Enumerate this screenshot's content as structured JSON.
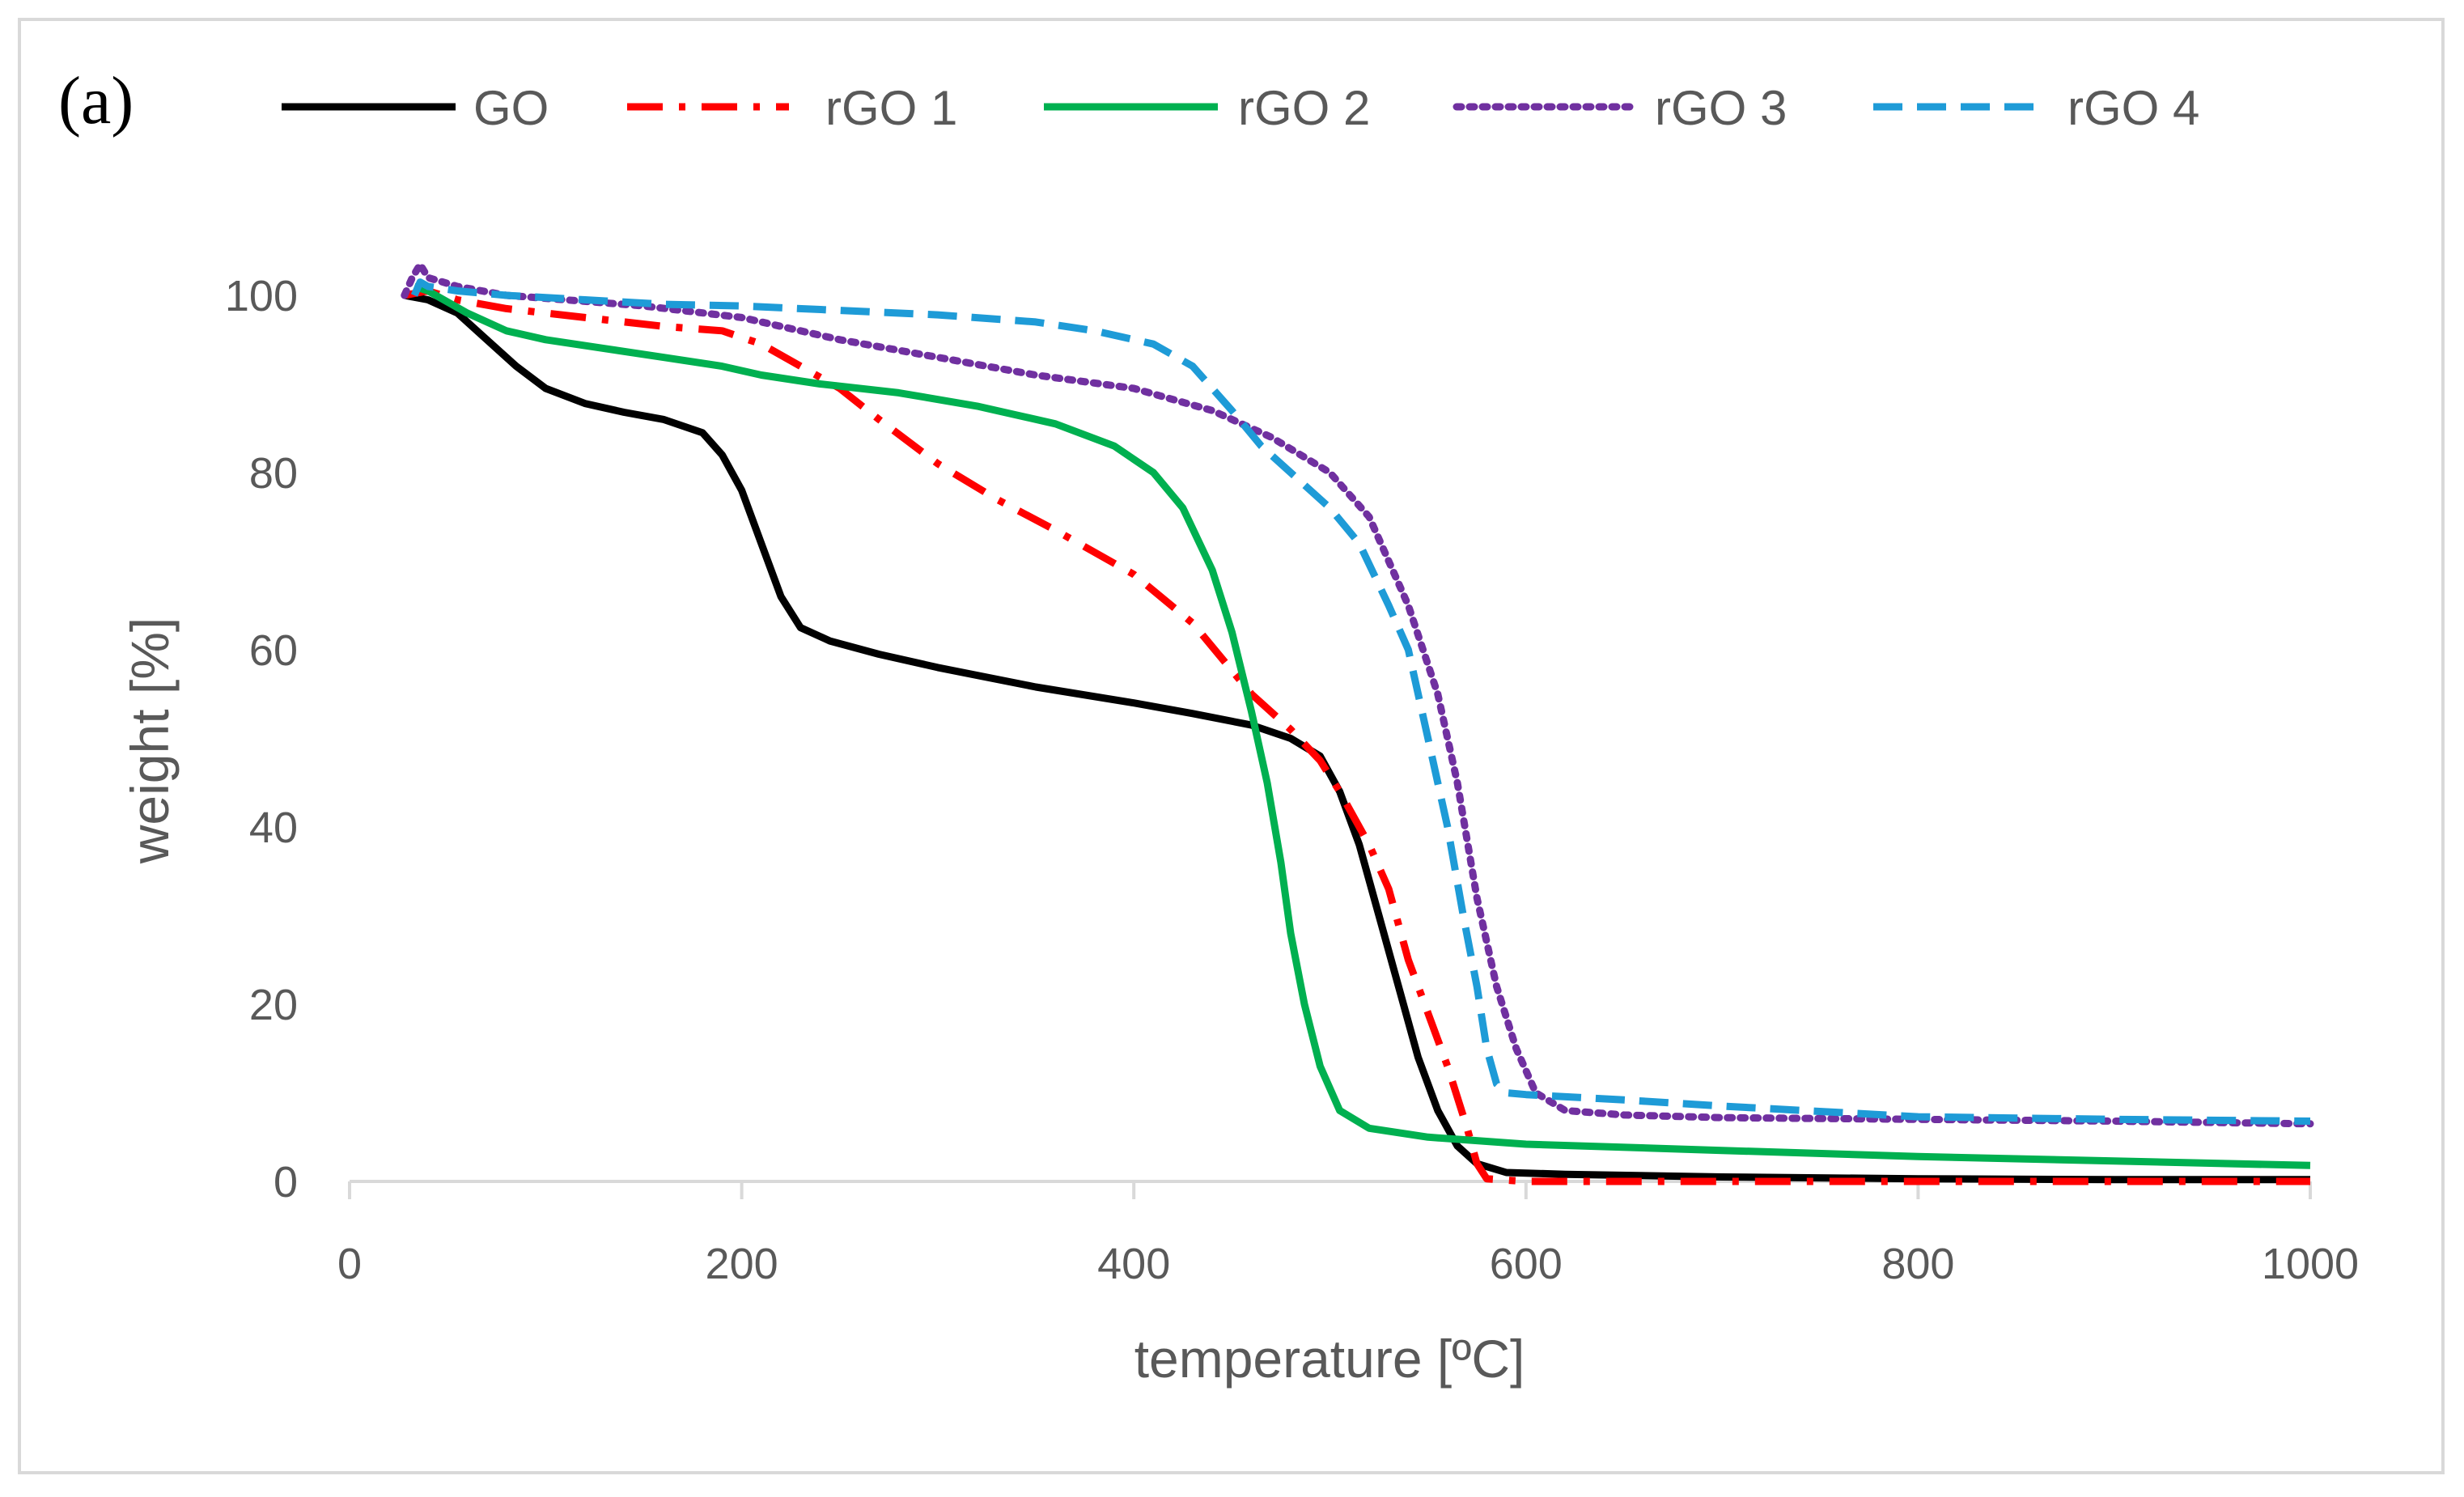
{
  "chart_data": {
    "type": "line",
    "panel_label": "(a)",
    "xlabel": "temperature [ºC]",
    "ylabel": "weight [%]",
    "xlim": [
      0,
      1000
    ],
    "ylim": [
      0,
      105
    ],
    "x_ticks": [
      0,
      200,
      400,
      600,
      800,
      1000
    ],
    "y_ticks": [
      0,
      20,
      40,
      60,
      80,
      100
    ],
    "x_tick_labels": [
      "0",
      "200",
      "400",
      "600",
      "800",
      "1000"
    ],
    "y_tick_labels": [
      "0",
      "20",
      "40",
      "60",
      "80",
      "100"
    ],
    "grid": false,
    "legend_position": "top",
    "series": [
      {
        "name": "GO",
        "color": "#000000",
        "style": "solid",
        "points": [
          [
            28,
            100
          ],
          [
            40,
            99.5
          ],
          [
            55,
            98
          ],
          [
            70,
            95
          ],
          [
            85,
            92
          ],
          [
            100,
            89.5
          ],
          [
            120,
            87.8
          ],
          [
            140,
            86.8
          ],
          [
            160,
            86
          ],
          [
            180,
            84.5
          ],
          [
            190,
            82
          ],
          [
            200,
            78
          ],
          [
            210,
            72
          ],
          [
            220,
            66
          ],
          [
            230,
            62.5
          ],
          [
            245,
            61
          ],
          [
            270,
            59.5
          ],
          [
            300,
            58
          ],
          [
            350,
            55.8
          ],
          [
            400,
            54
          ],
          [
            430,
            52.8
          ],
          [
            460,
            51.5
          ],
          [
            480,
            50
          ],
          [
            495,
            48
          ],
          [
            505,
            44
          ],
          [
            515,
            38
          ],
          [
            525,
            30
          ],
          [
            535,
            22
          ],
          [
            545,
            14
          ],
          [
            555,
            8
          ],
          [
            565,
            4
          ],
          [
            575,
            2
          ],
          [
            590,
            1
          ],
          [
            620,
            0.8
          ],
          [
            700,
            0.5
          ],
          [
            800,
            0.3
          ],
          [
            900,
            0.2
          ],
          [
            1000,
            0.2
          ]
        ]
      },
      {
        "name": "rGO 1",
        "color": "#ff0000",
        "style": "dashdot",
        "points": [
          [
            28,
            100
          ],
          [
            40,
            100.5
          ],
          [
            55,
            99.5
          ],
          [
            80,
            98.5
          ],
          [
            120,
            97.5
          ],
          [
            160,
            96.5
          ],
          [
            190,
            96
          ],
          [
            210,
            94.5
          ],
          [
            230,
            92
          ],
          [
            250,
            89.5
          ],
          [
            270,
            86
          ],
          [
            300,
            81
          ],
          [
            330,
            77
          ],
          [
            360,
            73.5
          ],
          [
            400,
            68.5
          ],
          [
            430,
            63
          ],
          [
            460,
            55
          ],
          [
            480,
            51
          ],
          [
            495,
            47.5
          ],
          [
            505,
            44
          ],
          [
            520,
            38
          ],
          [
            530,
            33
          ],
          [
            540,
            25
          ],
          [
            550,
            19
          ],
          [
            560,
            13
          ],
          [
            570,
            6
          ],
          [
            575,
            2
          ],
          [
            580,
            0.3
          ],
          [
            600,
            0
          ],
          [
            700,
            0
          ],
          [
            800,
            0
          ],
          [
            900,
            0
          ],
          [
            1000,
            0
          ]
        ]
      },
      {
        "name": "rGO 2",
        "color": "#00b050",
        "style": "solid",
        "points": [
          [
            33,
            101
          ],
          [
            40,
            100.5
          ],
          [
            60,
            98
          ],
          [
            80,
            96
          ],
          [
            100,
            95
          ],
          [
            130,
            94
          ],
          [
            160,
            93
          ],
          [
            190,
            92
          ],
          [
            210,
            91
          ],
          [
            240,
            90
          ],
          [
            280,
            89
          ],
          [
            320,
            87.5
          ],
          [
            360,
            85.5
          ],
          [
            390,
            83
          ],
          [
            410,
            80
          ],
          [
            425,
            76
          ],
          [
            440,
            69
          ],
          [
            450,
            62
          ],
          [
            460,
            53
          ],
          [
            468,
            45
          ],
          [
            475,
            36
          ],
          [
            480,
            28
          ],
          [
            487,
            20
          ],
          [
            495,
            13
          ],
          [
            505,
            8
          ],
          [
            520,
            6
          ],
          [
            550,
            5
          ],
          [
            600,
            4.2
          ],
          [
            700,
            3.5
          ],
          [
            800,
            2.8
          ],
          [
            900,
            2.3
          ],
          [
            1000,
            1.8
          ]
        ]
      },
      {
        "name": "rGO 3",
        "color": "#7030a0",
        "style": "dotted",
        "points": [
          [
            28,
            100
          ],
          [
            32,
            102
          ],
          [
            36,
            103.5
          ],
          [
            40,
            102
          ],
          [
            55,
            101
          ],
          [
            80,
            100
          ],
          [
            110,
            99.5
          ],
          [
            150,
            98.8
          ],
          [
            200,
            97.5
          ],
          [
            250,
            95
          ],
          [
            300,
            93
          ],
          [
            350,
            91
          ],
          [
            400,
            89.5
          ],
          [
            440,
            87
          ],
          [
            470,
            84
          ],
          [
            500,
            80
          ],
          [
            520,
            75
          ],
          [
            540,
            65
          ],
          [
            555,
            55
          ],
          [
            565,
            45
          ],
          [
            575,
            32
          ],
          [
            585,
            22
          ],
          [
            595,
            15
          ],
          [
            605,
            10
          ],
          [
            620,
            8
          ],
          [
            650,
            7.5
          ],
          [
            700,
            7.2
          ],
          [
            800,
            7
          ],
          [
            900,
            6.8
          ],
          [
            1000,
            6.5
          ]
        ]
      },
      {
        "name": "rGO 4",
        "color": "#1e9bd7",
        "style": "dashed",
        "points": [
          [
            33,
            100
          ],
          [
            36,
            101.5
          ],
          [
            40,
            101
          ],
          [
            55,
            100.5
          ],
          [
            80,
            100
          ],
          [
            120,
            99.5
          ],
          [
            160,
            99
          ],
          [
            200,
            98.8
          ],
          [
            250,
            98.3
          ],
          [
            300,
            97.8
          ],
          [
            350,
            97
          ],
          [
            380,
            96
          ],
          [
            410,
            94.5
          ],
          [
            430,
            92
          ],
          [
            450,
            87
          ],
          [
            465,
            83
          ],
          [
            480,
            80
          ],
          [
            500,
            76
          ],
          [
            515,
            72
          ],
          [
            530,
            65
          ],
          [
            540,
            60
          ],
          [
            550,
            50
          ],
          [
            560,
            40
          ],
          [
            568,
            30
          ],
          [
            575,
            22
          ],
          [
            580,
            15
          ],
          [
            585,
            11
          ],
          [
            590,
            10
          ],
          [
            600,
            9.8
          ],
          [
            650,
            9.2
          ],
          [
            700,
            8.5
          ],
          [
            800,
            7.3
          ],
          [
            900,
            7
          ],
          [
            1000,
            6.8
          ]
        ]
      }
    ]
  }
}
